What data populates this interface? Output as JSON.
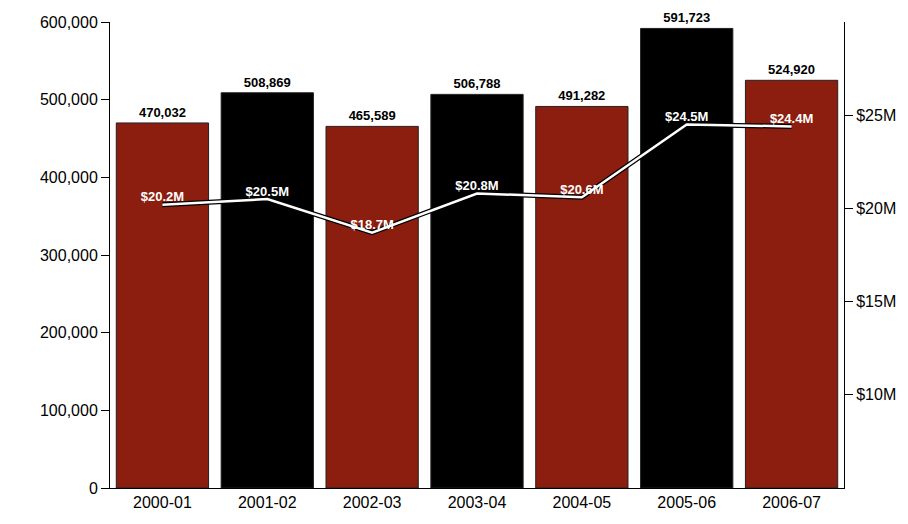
{
  "chart_data": {
    "type": "bar",
    "categories": [
      "2000-01",
      "2001-02",
      "2002-03",
      "2003-04",
      "2004-05",
      "2005-06",
      "2006-07"
    ],
    "values": [
      470032,
      508869,
      465589,
      506788,
      491282,
      591723,
      524920
    ],
    "value_labels": [
      "470,032",
      "508,869",
      "465,589",
      "506,788",
      "491,282",
      "591,723",
      "524,920"
    ],
    "colors": [
      "#8b1e0e",
      "#000000",
      "#8b1e0e",
      "#000000",
      "#8b1e0e",
      "#000000",
      "#8b1e0e"
    ],
    "ylim": [
      0,
      600000
    ],
    "yticks": [
      0,
      {
        "value": 100000,
        "label": "100,000"
      },
      {
        "value": 200000,
        "label": "200,000"
      },
      {
        "value": 300000,
        "label": "300,000"
      },
      {
        "value": 400000,
        "label": "400,000"
      },
      {
        "value": 500000,
        "label": "500,000"
      },
      {
        "value": 600000,
        "label": "600,000"
      }
    ],
    "y2lim": [
      5,
      30
    ],
    "y2ticks": [
      {
        "value": 10,
        "label": "$10M"
      },
      {
        "value": 15,
        "label": "$15M"
      },
      {
        "value": 20,
        "label": "$20M"
      },
      {
        "value": 25,
        "label": "$25M"
      }
    ],
    "series": [
      {
        "type": "line",
        "axis": "y2",
        "color": "#ffffff",
        "values": [
          20.2,
          20.5,
          18.7,
          20.8,
          20.6,
          24.5,
          24.4
        ],
        "value_labels": [
          "$20.2M",
          "$20.5M",
          "$18.7M",
          "$20.8M",
          "$20.6M",
          "$24.5M",
          "$24.4M"
        ]
      }
    ],
    "data_labels": true,
    "grid": false
  }
}
